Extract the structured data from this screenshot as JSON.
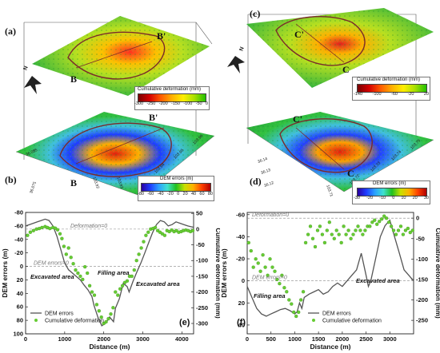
{
  "panels": {
    "a": {
      "label": "(a)",
      "profile_start": "B",
      "profile_end": "B'",
      "north": "N"
    },
    "b": {
      "label": "(b)",
      "profile_start": "B",
      "profile_end": "B'",
      "coords": [
        "36.085",
        "36.075",
        "103.92",
        "103.93",
        "103.94",
        "103.95",
        "103.96"
      ]
    },
    "c": {
      "label": "(c)",
      "profile_start": "C",
      "profile_end": "C'",
      "north": "N"
    },
    "d": {
      "label": "(d)",
      "profile_start": "C",
      "profile_end": "C'",
      "coords": [
        "36.14",
        "36.13",
        "36.12",
        "103.71",
        "103.72",
        "103.73",
        "103.74",
        "103.75"
      ]
    },
    "e": {
      "label": "(e)"
    },
    "f": {
      "label": "(f)"
    }
  },
  "colorbars": {
    "a": {
      "title": "Cumulative deformation (mm)",
      "ticks": [
        "-300",
        "-250",
        "-200",
        "-150",
        "-100",
        "-50",
        "0"
      ],
      "colors": [
        "#7a0000",
        "#d40000",
        "#ff5a00",
        "#ffb000",
        "#ffee00",
        "#a8e000",
        "#22c000"
      ]
    },
    "b": {
      "title": "DEM errors (m)",
      "ticks": [
        "-80",
        "-60",
        "-40",
        "-20",
        "0",
        "20",
        "40",
        "60",
        "80"
      ],
      "colors": [
        "#2a00a0",
        "#1e3cff",
        "#2aa0ff",
        "#40e0d0",
        "#20c020",
        "#c8e000",
        "#ffb000",
        "#ff4000",
        "#b00000"
      ]
    },
    "c": {
      "title": "Cumulative deformation (mm)",
      "ticks": [
        "-140",
        "-100",
        "-60",
        "-20",
        "20"
      ],
      "colors": [
        "#7a0000",
        "#d40000",
        "#ff5a00",
        "#ffb000",
        "#ffee00",
        "#a8e000",
        "#22c000"
      ]
    },
    "d": {
      "title": "DEM errors (m)",
      "ticks": [
        "-30",
        "-20",
        "-10",
        "0",
        "10",
        "20",
        "30"
      ],
      "colors": [
        "#2a00a0",
        "#1e3cff",
        "#2aa0ff",
        "#40e0d0",
        "#20c020",
        "#c8e000",
        "#ffb000",
        "#ff4000",
        "#b00000"
      ]
    }
  },
  "colors": {
    "dem_line": "#555555",
    "deformation_marker": "#66cc33",
    "reference_line": "#888888",
    "terrain_green": "#39b54a",
    "terrain_red": "#e02020",
    "terrain_blue": "#2244ee",
    "boundary": "#7a2a2a"
  },
  "chart_data": [
    {
      "type": "line",
      "panel": "(e)",
      "xlabel": "Distance (m)",
      "ylabel": "DEM errors (m)",
      "y2label": "Cumulative deformation (mm)",
      "xlim": [
        0,
        4300
      ],
      "ylim": [
        -80,
        100
      ],
      "y_inverted": true,
      "y2lim": [
        -333,
        53
      ],
      "xticks": [
        "0",
        "1000",
        "2000",
        "3000",
        "4000"
      ],
      "yticks": [
        "-80",
        "-60",
        "-40",
        "-20",
        "0",
        "20",
        "40",
        "60",
        "80",
        "100"
      ],
      "y2ticks": [
        "50",
        "0",
        "-50",
        "-100",
        "-150",
        "-200",
        "-250",
        "-300"
      ],
      "legend": [
        "DEM errors",
        "Cumulative deformation"
      ],
      "legend_position": "bottom-left",
      "annotations": [
        "Deformation=0",
        "DEM errors=0",
        "Filling area",
        "Excavated area",
        "Excavated area"
      ],
      "series": [
        {
          "name": "DEM errors",
          "kind": "line",
          "x": [
            0,
            100,
            200,
            300,
            400,
            500,
            600,
            700,
            800,
            900,
            1000,
            1100,
            1200,
            1300,
            1400,
            1500,
            1600,
            1700,
            1750,
            1850,
            1950,
            2050,
            2150,
            2250,
            2300,
            2400,
            2500,
            2600,
            2650,
            2750,
            2850,
            2950,
            3050,
            3150,
            3250,
            3350,
            3450,
            3550,
            3650,
            3750,
            3850,
            3950,
            4050,
            4150,
            4300
          ],
          "y": [
            -60,
            -62,
            -64,
            -66,
            -68,
            -70,
            -68,
            -60,
            -45,
            -25,
            -5,
            5,
            10,
            15,
            20,
            28,
            35,
            45,
            58,
            75,
            88,
            84,
            75,
            82,
            62,
            48,
            25,
            30,
            38,
            22,
            8,
            -5,
            -20,
            -35,
            -50,
            -62,
            -68,
            -66,
            -60,
            -62,
            -66,
            -64,
            -62,
            -60,
            -58
          ]
        },
        {
          "name": "Cumulative deformation",
          "kind": "scatter",
          "x": [
            50,
            120,
            200,
            280,
            350,
            420,
            500,
            560,
            620,
            700,
            760,
            820,
            880,
            930,
            980,
            1040,
            1100,
            1160,
            1220,
            1280,
            1340,
            1400,
            1460,
            1520,
            1580,
            1640,
            1700,
            1760,
            1820,
            1880,
            1940,
            2000,
            2060,
            2120,
            2180,
            2240,
            2300,
            2360,
            2420,
            2480,
            2540,
            2600,
            2660,
            2720,
            2780,
            2840,
            2900,
            2960,
            3020,
            3080,
            3140,
            3200,
            3260,
            3320,
            3380,
            3440,
            3500,
            3560,
            3620,
            3680,
            3740,
            3800,
            3860,
            3920,
            3980,
            4040,
            4100,
            4160,
            4220,
            4280
          ],
          "y": [
            -20,
            -10,
            -5,
            0,
            2,
            5,
            8,
            5,
            2,
            5,
            3,
            -2,
            -15,
            -30,
            -55,
            -80,
            -60,
            -90,
            -110,
            -130,
            -140,
            -150,
            -160,
            -120,
            -140,
            -180,
            -200,
            -210,
            -240,
            -260,
            -280,
            -300,
            -295,
            -285,
            -270,
            -250,
            -200,
            -210,
            -190,
            -180,
            -170,
            -165,
            -150,
            -150,
            -130,
            -100,
            -80,
            -60,
            -40,
            -20,
            -10,
            0,
            2,
            5,
            -5,
            -10,
            -15,
            -20,
            -5,
            -8,
            -3,
            -8,
            -5,
            -10,
            -8,
            -5,
            -3,
            -5,
            -8,
            -5
          ]
        }
      ]
    },
    {
      "type": "line",
      "panel": "(f)",
      "xlabel": "Distance (m)",
      "ylabel": "DEM errors (m)",
      "y2label": "Cumulative deformation (mm)",
      "xlim": [
        0,
        3500
      ],
      "ylim": [
        -62,
        48
      ],
      "y_inverted": true,
      "y2lim": [
        -283,
        14
      ],
      "xticks": [
        "0",
        "500",
        "1000",
        "1500",
        "2000",
        "2500",
        "3000"
      ],
      "yticks": [
        "-60",
        "-40",
        "-20",
        "0",
        "20",
        "40"
      ],
      "y2ticks": [
        "0",
        "-50",
        "-100",
        "-150",
        "-200",
        "-250"
      ],
      "legend": [
        "DEM errors",
        "Cumulative deformation"
      ],
      "legend_position": "bottom-right",
      "annotations": [
        "Deformation=0",
        "DEM errors=0",
        "Filling area",
        "Excavated area"
      ],
      "series": [
        {
          "name": "DEM errors",
          "kind": "line",
          "x": [
            0,
            100,
            200,
            300,
            400,
            500,
            600,
            700,
            800,
            900,
            1000,
            1050,
            1100,
            1150,
            1200,
            1300,
            1400,
            1500,
            1600,
            1700,
            1800,
            1900,
            2000,
            2100,
            2200,
            2300,
            2400,
            2500,
            2550,
            2600,
            2700,
            2800,
            2900,
            3000,
            3100,
            3200,
            3300,
            3400,
            3500
          ],
          "y": [
            5,
            15,
            25,
            30,
            32,
            30,
            28,
            26,
            25,
            27,
            30,
            28,
            20,
            25,
            15,
            12,
            10,
            8,
            12,
            10,
            5,
            2,
            5,
            0,
            -5,
            -10,
            -25,
            -5,
            5,
            0,
            -20,
            -40,
            -50,
            -55,
            -40,
            -25,
            -10,
            -5,
            0
          ]
        },
        {
          "name": "Cumulative deformation",
          "kind": "scatter",
          "x": [
            30,
            80,
            130,
            180,
            230,
            280,
            330,
            380,
            430,
            480,
            530,
            580,
            630,
            680,
            730,
            780,
            830,
            880,
            930,
            980,
            1030,
            1080,
            1130,
            1180,
            1230,
            1280,
            1330,
            1380,
            1430,
            1480,
            1530,
            1580,
            1630,
            1680,
            1730,
            1780,
            1830,
            1880,
            1930,
            1980,
            2030,
            2080,
            2130,
            2180,
            2230,
            2280,
            2330,
            2380,
            2430,
            2480,
            2530,
            2580,
            2630,
            2680,
            2730,
            2780,
            2830,
            2880,
            2930,
            2980,
            3030,
            3080,
            3130,
            3180,
            3230,
            3280,
            3330,
            3380,
            3430,
            3480
          ],
          "y": [
            -60,
            -80,
            -120,
            -100,
            -110,
            -130,
            -90,
            -120,
            -140,
            -100,
            -120,
            -130,
            -150,
            -160,
            -140,
            -170,
            -180,
            -200,
            -210,
            -230,
            -240,
            -230,
            -200,
            -180,
            -60,
            -40,
            -20,
            -50,
            -70,
            -30,
            -20,
            -40,
            -60,
            -30,
            -10,
            -40,
            -50,
            -30,
            -40,
            -60,
            -20,
            -40,
            -30,
            -50,
            -40,
            -30,
            -20,
            -30,
            -40,
            -30,
            -20,
            -20,
            -10,
            -5,
            -15,
            -8,
            -2,
            5,
            0,
            -10,
            -20,
            -30,
            -40,
            -30,
            -20,
            -40,
            -30,
            -25,
            -35,
            -30
          ]
        }
      ]
    }
  ]
}
